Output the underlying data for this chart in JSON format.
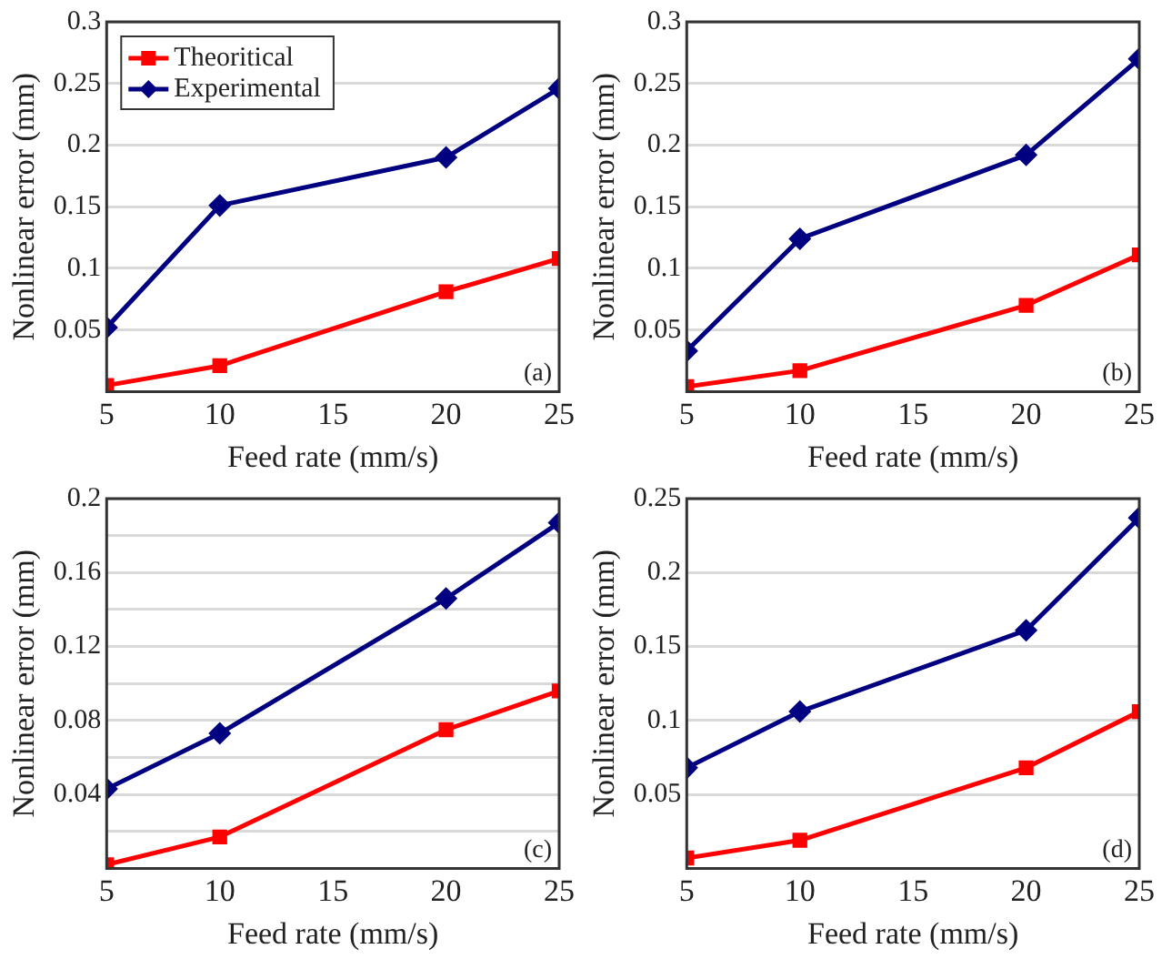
{
  "chart_data": [
    {
      "type": "line",
      "xlabel": "Feed rate (mm/s)",
      "ylabel": "Nonlinear error (mm)",
      "annotations": [
        "(a)"
      ],
      "x": [
        5,
        10,
        20,
        25
      ],
      "xlim": [
        5,
        25
      ],
      "xticks": [
        5,
        10,
        15,
        20,
        25
      ],
      "ylim": [
        0,
        0.3
      ],
      "yticks": [
        0.05,
        0.1,
        0.15,
        0.2,
        0.25,
        0.3
      ],
      "grid": "y",
      "legend": "top left",
      "line_style": "solid",
      "series": [
        {
          "name": "Theoritical",
          "color": "#ff0000",
          "marker": "square",
          "values": [
            0.005,
            0.021,
            0.081,
            0.108
          ]
        },
        {
          "name": "Experimental",
          "color": "#000080",
          "marker": "diamond",
          "values": [
            0.052,
            0.151,
            0.19,
            0.246
          ]
        }
      ]
    },
    {
      "type": "line",
      "xlabel": "Feed rate (mm/s)",
      "ylabel": "Nonlinear error (mm)",
      "annotations": [
        "(b)"
      ],
      "x": [
        5,
        10,
        20,
        25
      ],
      "xlim": [
        5,
        25
      ],
      "xticks": [
        5,
        10,
        15,
        20,
        25
      ],
      "ylim": [
        0,
        0.3
      ],
      "yticks": [
        0.05,
        0.1,
        0.15,
        0.2,
        0.25,
        0.3
      ],
      "grid": "y",
      "line_style": "solid",
      "series": [
        {
          "color": "#ff0000",
          "marker": "square",
          "values": [
            0.004,
            0.017,
            0.07,
            0.111
          ]
        },
        {
          "color": "#000080",
          "marker": "diamond",
          "values": [
            0.033,
            0.124,
            0.192,
            0.27
          ]
        }
      ]
    },
    {
      "type": "line",
      "xlabel": "Feed rate (mm/s)",
      "ylabel": "Nonlinear error (mm)",
      "annotations": [
        "(c)"
      ],
      "x": [
        5,
        10,
        20,
        25
      ],
      "xlim": [
        5,
        25
      ],
      "xticks": [
        5,
        10,
        15,
        20,
        25
      ],
      "ylim": [
        0,
        0.2
      ],
      "yticks": [
        {
          "value": 0.02,
          "label": null
        },
        0.04,
        {
          "value": 0.06,
          "label": null
        },
        0.08,
        {
          "value": 0.1,
          "label": null
        },
        0.12,
        {
          "value": 0.14,
          "label": null
        },
        0.16,
        {
          "value": 0.18,
          "label": null
        },
        0.2
      ],
      "grid": "y",
      "line_style": "solid",
      "series": [
        {
          "color": "#ff0000",
          "marker": "square",
          "values": [
            0.002,
            0.017,
            0.075,
            0.096
          ]
        },
        {
          "color": "#000080",
          "marker": "diamond",
          "values": [
            0.043,
            0.073,
            0.146,
            0.187
          ]
        }
      ]
    },
    {
      "type": "line",
      "xlabel": "Feed rate (mm/s)",
      "ylabel": "Nonlinear error (mm)",
      "annotations": [
        "(d)"
      ],
      "x": [
        5,
        10,
        20,
        25
      ],
      "xlim": [
        5,
        25
      ],
      "xticks": [
        5,
        10,
        15,
        20,
        25
      ],
      "ylim": [
        0,
        0.25
      ],
      "yticks": [
        0.05,
        0.1,
        0.15,
        0.2,
        0.25
      ],
      "grid": "y",
      "line_style": "solid",
      "series": [
        {
          "color": "#ff0000",
          "marker": "square",
          "values": [
            0.007,
            0.019,
            0.068,
            0.106
          ]
        },
        {
          "color": "#000080",
          "marker": "diamond",
          "values": [
            0.068,
            0.106,
            0.161,
            0.237
          ]
        }
      ]
    }
  ]
}
